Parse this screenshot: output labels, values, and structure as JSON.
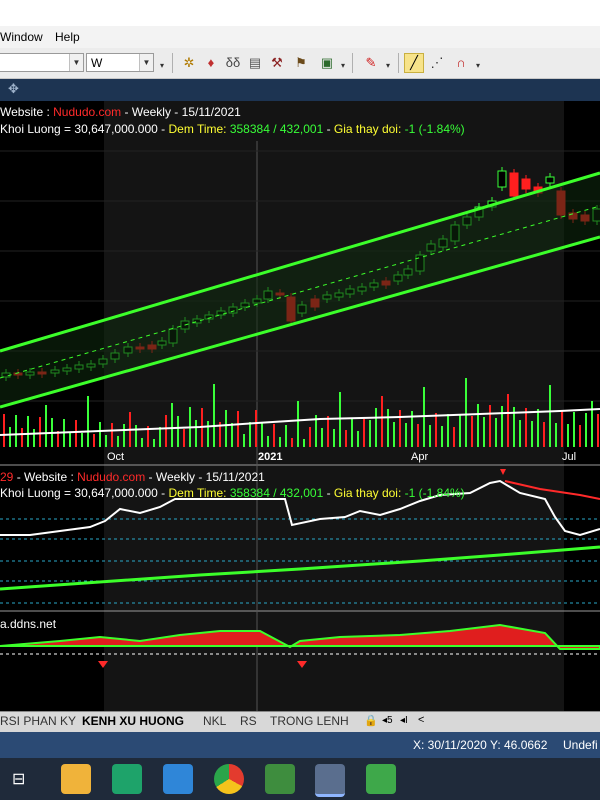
{
  "menu": {
    "items": [
      "Window",
      "Help"
    ]
  },
  "toolbar": {
    "combo1_value": "",
    "combo2_value": "W"
  },
  "header1": {
    "line1": {
      "label": "Website : ",
      "site": "Nududo.com",
      "rest": " - Weekly  -  15/11/2021"
    },
    "line2": {
      "label": "Khoi Luong = 30,647,000.000",
      "sep1": " - ",
      "dem_label": "Dem Time: ",
      "dem_value": "358384 / 432,001",
      "sep2": " - ",
      "gia_label": "Gia thay doi: ",
      "gia_value": "-1 (-1.84%)"
    }
  },
  "header2": {
    "line1": {
      "num": "29",
      "label": " - Website : ",
      "site": "Nududo.com",
      "rest": " - Weekly  -  15/11/2021"
    },
    "line2": {
      "label": "Khoi Luong = 30,647,000.000",
      "sep1": " - ",
      "dem_label": "Dem Time: ",
      "dem_value": "358384 / 432,001",
      "sep2": " - ",
      "gia_label": "Gia thay doi: ",
      "gia_value": "-1 (-1.84%)"
    }
  },
  "header3": {
    "text": "a.ddns.net"
  },
  "time_axis": {
    "labels": [
      "Oct",
      "2021",
      "Apr",
      "Jul"
    ]
  },
  "tabs": [
    "RSI PHAN KY",
    "KENH XU HUONG",
    "NKL",
    "RS",
    "TRONG LENH"
  ],
  "active_tab": "KENH XU HUONG",
  "status": {
    "x": "X: 30/11/2020",
    "y": "Y: 46.0662",
    "extra": "Undefi"
  },
  "colors": {
    "up": "#39ff39",
    "down": "#ff1f1f",
    "channel": "#3cff2a",
    "accent_red": "#ff2a2a",
    "accent_yellow": "#ffff33"
  },
  "taskbar_icons": [
    "task-view-icon",
    "file-explorer-icon",
    "app-green-icon",
    "app-blue-icon",
    "chrome-icon",
    "app-diamond-icon",
    "app-triangle-icon",
    "app-chart-icon"
  ]
}
